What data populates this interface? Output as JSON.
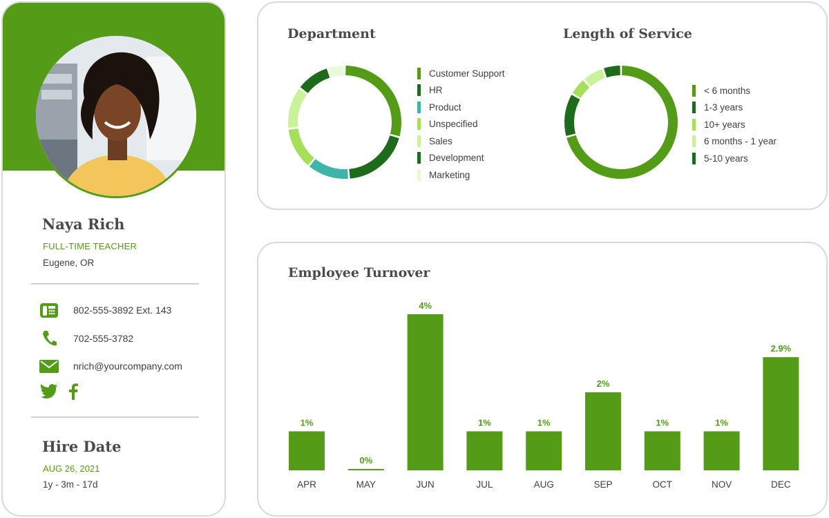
{
  "profile": {
    "name": "Naya Rich",
    "job_title": "FULL-TIME TEACHER",
    "location": "Eugene, OR",
    "phone_office": "802-555-3892 Ext. 143",
    "phone_mobile": "702-555-3782",
    "email": "nrich@yourcompany.com",
    "hire_date_title": "Hire Date",
    "hire_date": "AUG 26, 2021",
    "tenure": "1y - 3m - 17d",
    "icons": [
      "office-phone-icon",
      "mobile-phone-icon",
      "email-icon",
      "twitter-icon",
      "facebook-icon"
    ]
  },
  "colors": {
    "brand_green": "#549b17",
    "dark_green": "#1f6b1c",
    "teal": "#3fb5a8",
    "lime": "#a6e05a",
    "light_lime": "#c9f29a",
    "pale_green": "#e9fbd6"
  },
  "chart_data": [
    {
      "type": "pie",
      "title": "Department",
      "categories": [
        "Customer Support",
        "HR",
        "Product",
        "Unspecified",
        "Sales",
        "Development",
        "Marketing"
      ],
      "values": [
        24,
        16,
        10,
        10,
        10,
        8,
        4
      ],
      "colors": [
        "#549b17",
        "#1f6b1c",
        "#3fb5a8",
        "#a6e05a",
        "#c9f29a",
        "#1f6b1c",
        "#e9fbd6"
      ],
      "legend_position": "right"
    },
    {
      "type": "pie",
      "title": "Length of Service",
      "categories": [
        "< 6 months",
        "1-3 years",
        "10+ years",
        "6 months - 1 year",
        "5-10 years"
      ],
      "values": [
        68,
        12,
        5,
        6,
        5
      ],
      "colors": [
        "#549b17",
        "#1f6b1c",
        "#a6e05a",
        "#c9f29a",
        "#1f6b1c"
      ],
      "legend_position": "right"
    },
    {
      "type": "bar",
      "title": "Employee Turnover",
      "categories": [
        "APR",
        "MAY",
        "JUN",
        "JUL",
        "AUG",
        "SEP",
        "OCT",
        "NOV",
        "DEC"
      ],
      "values": [
        1,
        0,
        4,
        1,
        1,
        2,
        1,
        1,
        2.9
      ],
      "value_labels": [
        "1%",
        "0%",
        "4%",
        "1%",
        "1%",
        "2%",
        "1%",
        "1%",
        "2.9%"
      ],
      "ylim": [
        0,
        4
      ],
      "xlabel": "",
      "ylabel": ""
    }
  ]
}
